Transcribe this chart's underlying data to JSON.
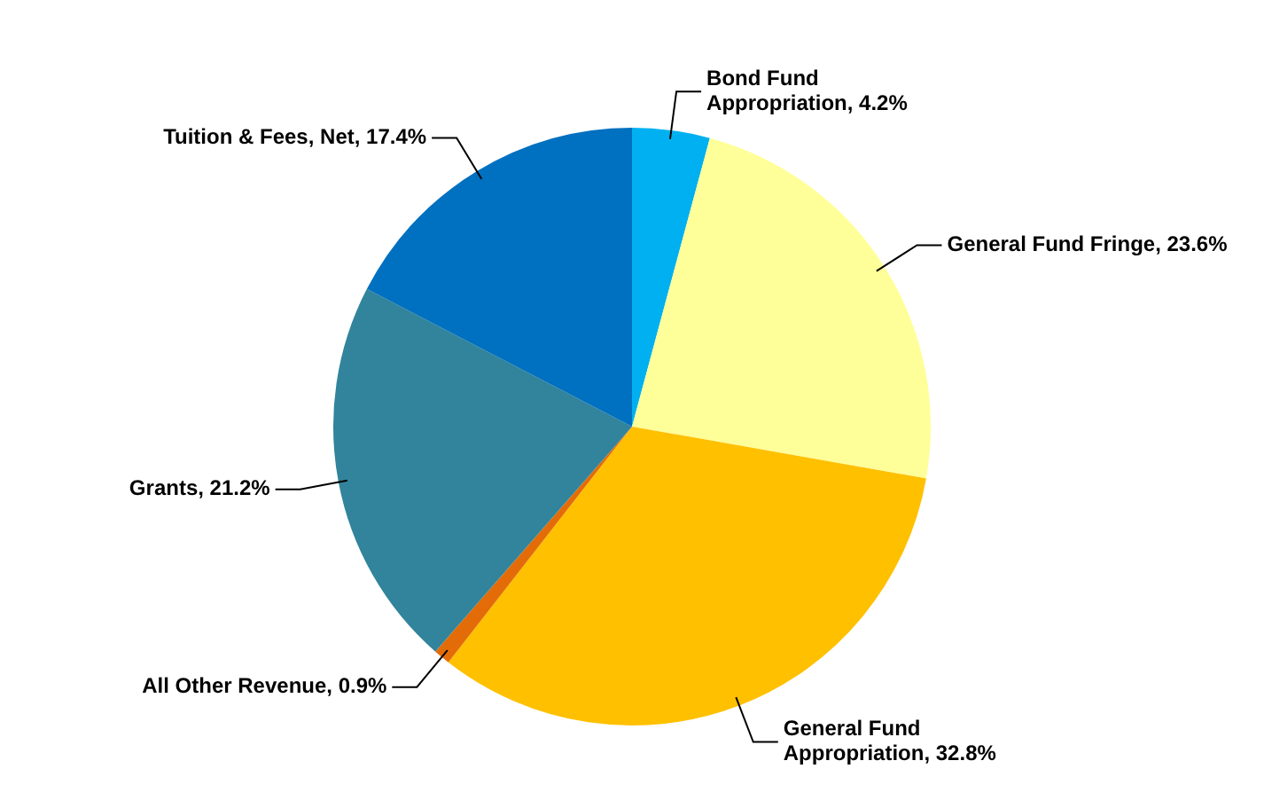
{
  "chart_data": {
    "type": "pie",
    "categories": [
      "Bond Fund Appropriation",
      "General Fund Fringe",
      "General Fund Appropriation",
      "All Other Revenue",
      "Grants",
      "Tuition & Fees, Net"
    ],
    "values": [
      4.2,
      23.6,
      32.8,
      0.9,
      21.2,
      17.4
    ],
    "value_labels": [
      "4.2%",
      "23.6%",
      "32.8%",
      "0.9%",
      "21.2%",
      "17.4%"
    ],
    "colors": [
      "#00b0f0",
      "#ffff99",
      "#ffc000",
      "#e36c09",
      "#31849b",
      "#0070c0"
    ],
    "legend": false
  }
}
